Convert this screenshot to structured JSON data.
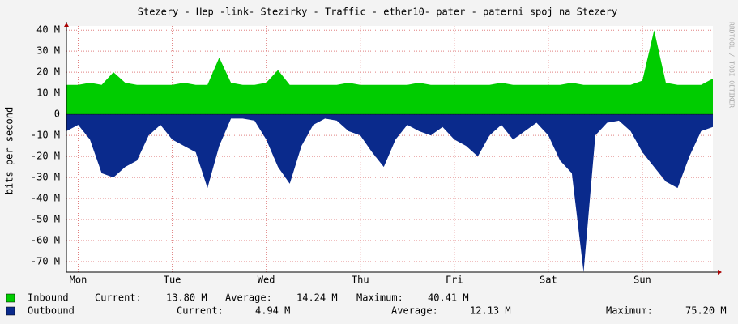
{
  "chart_data": {
    "type": "area",
    "title": "Stezery - Hep -link- Stezirky  - Traffic - ether10- pater - paterni spoj na Stezery",
    "ylabel": "bits per second",
    "watermark": "RRDTOOL / TOBI OETIKER",
    "ylim": [
      -75,
      42
    ],
    "yticks": [
      {
        "value": 40,
        "label": "40 M"
      },
      {
        "value": 30,
        "label": "30 M"
      },
      {
        "value": 20,
        "label": "20 M"
      },
      {
        "value": 10,
        "label": "10 M"
      },
      0,
      {
        "value": -10,
        "label": "-10 M"
      },
      {
        "value": -20,
        "label": "-20 M"
      },
      {
        "value": -30,
        "label": "-30 M"
      },
      {
        "value": -40,
        "label": "-40 M"
      },
      {
        "value": -50,
        "label": "-50 M"
      },
      {
        "value": -60,
        "label": "-60 M"
      },
      {
        "value": -70,
        "label": "-70 M"
      }
    ],
    "grid": true,
    "categories": [
      null,
      "Mon",
      null,
      null,
      null,
      null,
      null,
      null,
      null,
      "Tue",
      null,
      null,
      null,
      null,
      null,
      null,
      null,
      "Wed",
      null,
      null,
      null,
      null,
      null,
      null,
      null,
      "Thu",
      null,
      null,
      null,
      null,
      null,
      null,
      null,
      "Fri",
      null,
      null,
      null,
      null,
      null,
      null,
      null,
      "Sat",
      null,
      null,
      null,
      null,
      null,
      null,
      null,
      "Sun",
      null,
      null,
      null,
      null,
      null,
      null
    ],
    "series": [
      {
        "name": "Inbound",
        "color": "#00cc00",
        "values": [
          14,
          14,
          15,
          14,
          20,
          15,
          14,
          14,
          14,
          14,
          15,
          14,
          14,
          27,
          15,
          14,
          14,
          15,
          21,
          14,
          14,
          14,
          14,
          14,
          15,
          14,
          14,
          14,
          14,
          14,
          15,
          14,
          14,
          14,
          14,
          14,
          14,
          15,
          14,
          14,
          14,
          14,
          14,
          15,
          14,
          14,
          14,
          14,
          14,
          16,
          40,
          15,
          14,
          14,
          14,
          17
        ],
        "stats": [
          {
            "label": "Current:",
            "value": "13.80 M"
          },
          {
            "label": "Average:",
            "value": "14.24 M"
          },
          {
            "label": "Maximum:",
            "value": "40.41 M"
          }
        ]
      },
      {
        "name": "Outbound",
        "color": "#0a2a8c",
        "values": [
          -8,
          -5,
          -12,
          -28,
          -30,
          -25,
          -22,
          -10,
          -5,
          -12,
          -15,
          -18,
          -35,
          -15,
          -2,
          -2,
          -3,
          -12,
          -25,
          -33,
          -15,
          -5,
          -2,
          -3,
          -8,
          -10,
          -18,
          -25,
          -12,
          -5,
          -8,
          -10,
          -6,
          -12,
          -15,
          -20,
          -10,
          -5,
          -12,
          -8,
          -4,
          -10,
          -22,
          -28,
          -75,
          -10,
          -4,
          -3,
          -8,
          -18,
          -25,
          -32,
          -35,
          -20,
          -8,
          -6
        ],
        "stats": [
          {
            "label": "Current:",
            "value": "4.94 M"
          },
          {
            "label": "Average:",
            "value": "12.13 M"
          },
          {
            "label": "Maximum:",
            "value": "75.20 M"
          }
        ]
      }
    ]
  }
}
